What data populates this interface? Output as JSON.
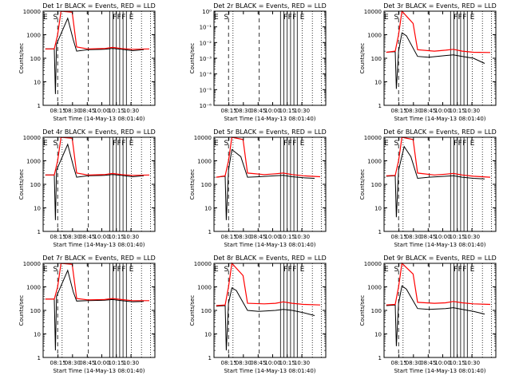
{
  "figure": {
    "xtick_labels": [
      "08:15",
      "08:30",
      "08:45",
      "10:00",
      "10:15",
      "10:30"
    ],
    "xlabel": "Start Time (14-May-13 08:01:40)",
    "ylabel": "Counts/sec",
    "colors": {
      "events": "#000000",
      "lld": "#ff0000",
      "axes": "#000000",
      "background": "#ffffff"
    }
  },
  "chart_data": [
    {
      "type": "line",
      "title": "Det 1r BLACK = Events, RED = LLD",
      "yscale": "log",
      "ylim": [
        1,
        10000
      ],
      "ytick_labels": [
        "1",
        "10",
        "100",
        "1000",
        "10000"
      ],
      "xticks": [
        "08:15",
        "08:30",
        "08:45",
        "10:00",
        "10:15",
        "10:30"
      ],
      "markers": [
        {
          "label": "E",
          "x": 0.02
        },
        {
          "label": "S",
          "x": 0.11
        },
        {
          "label": "F",
          "x": 0.64
        },
        {
          "label": "F",
          "x": 0.68
        },
        {
          "label": "F",
          "x": 0.72
        },
        {
          "label": "E",
          "x": 0.79
        }
      ],
      "events": [
        [
          0.02,
          250
        ],
        [
          0.1,
          250
        ],
        [
          0.11,
          3
        ],
        [
          0.12,
          400
        ],
        [
          0.22,
          5000
        ],
        [
          0.27,
          600
        ],
        [
          0.3,
          200
        ],
        [
          0.4,
          230
        ],
        [
          0.55,
          240
        ],
        [
          0.62,
          260
        ],
        [
          0.7,
          240
        ],
        [
          0.8,
          210
        ],
        [
          0.9,
          230
        ]
      ],
      "lld": [
        [
          0.02,
          250
        ],
        [
          0.1,
          250
        ],
        [
          0.13,
          1000
        ],
        [
          0.16,
          10000
        ],
        [
          0.26,
          9000
        ],
        [
          0.3,
          300
        ],
        [
          0.4,
          250
        ],
        [
          0.55,
          260
        ],
        [
          0.62,
          290
        ],
        [
          0.7,
          260
        ],
        [
          0.8,
          240
        ],
        [
          0.95,
          250
        ]
      ]
    },
    {
      "type": "line",
      "title": "Det 2r BLACK = Events, RED = LLD",
      "yscale": "log",
      "ylim": [
        1e-06,
        1
      ],
      "ytick_labels": [
        "10⁻⁶",
        "10⁻⁵",
        "10⁻⁴",
        "10⁻³",
        "10⁻²",
        "10⁻¹",
        "10⁰"
      ],
      "xticks": [
        "08:15",
        "08:30",
        "08:45",
        "10:00",
        "10:15",
        "10:30"
      ],
      "markers": [
        {
          "label": "E",
          "x": 0.02
        },
        {
          "label": "S",
          "x": 0.11
        },
        {
          "label": "F",
          "x": 0.64
        },
        {
          "label": "F",
          "x": 0.68
        },
        {
          "label": "F",
          "x": 0.72
        },
        {
          "label": "E",
          "x": 0.79
        }
      ],
      "events": [],
      "lld": []
    },
    {
      "type": "line",
      "title": "Det 3r BLACK = Events, RED = LLD",
      "yscale": "log",
      "ylim": [
        1,
        10000
      ],
      "ytick_labels": [
        "1",
        "10",
        "100",
        "1000",
        "10000"
      ],
      "xticks": [
        "08:15",
        "08:30",
        "08:45",
        "10:00",
        "10:15",
        "10:30"
      ],
      "markers": [
        {
          "label": "E",
          "x": 0.02
        },
        {
          "label": "S",
          "x": 0.11
        },
        {
          "label": "F",
          "x": 0.64
        },
        {
          "label": "F",
          "x": 0.68
        },
        {
          "label": "F",
          "x": 0.72
        },
        {
          "label": "E",
          "x": 0.79
        }
      ],
      "events": [
        [
          0.02,
          180
        ],
        [
          0.1,
          190
        ],
        [
          0.11,
          5
        ],
        [
          0.13,
          200
        ],
        [
          0.16,
          1200
        ],
        [
          0.2,
          900
        ],
        [
          0.3,
          120
        ],
        [
          0.4,
          110
        ],
        [
          0.55,
          130
        ],
        [
          0.62,
          140
        ],
        [
          0.7,
          120
        ],
        [
          0.8,
          100
        ],
        [
          0.9,
          60
        ]
      ],
      "lld": [
        [
          0.02,
          180
        ],
        [
          0.1,
          200
        ],
        [
          0.13,
          1000
        ],
        [
          0.16,
          10000
        ],
        [
          0.26,
          3000
        ],
        [
          0.3,
          230
        ],
        [
          0.45,
          200
        ],
        [
          0.55,
          220
        ],
        [
          0.62,
          240
        ],
        [
          0.7,
          200
        ],
        [
          0.8,
          180
        ],
        [
          0.95,
          175
        ]
      ]
    },
    {
      "type": "line",
      "title": "Det 4r BLACK = Events, RED = LLD",
      "yscale": "log",
      "ylim": [
        1,
        10000
      ],
      "ytick_labels": [
        "1",
        "10",
        "100",
        "1000",
        "10000"
      ],
      "xticks": [
        "08:15",
        "08:30",
        "08:45",
        "10:00",
        "10:15",
        "10:30"
      ],
      "markers": [
        {
          "label": "E",
          "x": 0.02
        },
        {
          "label": "S",
          "x": 0.11
        },
        {
          "label": "F",
          "x": 0.64
        },
        {
          "label": "F",
          "x": 0.68
        },
        {
          "label": "F",
          "x": 0.72
        },
        {
          "label": "E",
          "x": 0.79
        }
      ],
      "events": [
        [
          0.02,
          250
        ],
        [
          0.1,
          250
        ],
        [
          0.11,
          3
        ],
        [
          0.12,
          400
        ],
        [
          0.22,
          5000
        ],
        [
          0.27,
          600
        ],
        [
          0.3,
          200
        ],
        [
          0.4,
          230
        ],
        [
          0.55,
          240
        ],
        [
          0.62,
          260
        ],
        [
          0.7,
          240
        ],
        [
          0.8,
          210
        ],
        [
          0.9,
          230
        ]
      ],
      "lld": [
        [
          0.02,
          250
        ],
        [
          0.1,
          250
        ],
        [
          0.13,
          1000
        ],
        [
          0.16,
          10000
        ],
        [
          0.26,
          9000
        ],
        [
          0.3,
          300
        ],
        [
          0.4,
          250
        ],
        [
          0.55,
          260
        ],
        [
          0.62,
          290
        ],
        [
          0.7,
          260
        ],
        [
          0.8,
          240
        ],
        [
          0.95,
          250
        ]
      ]
    },
    {
      "type": "line",
      "title": "Det 5r BLACK = Events, RED = LLD",
      "yscale": "log",
      "ylim": [
        1,
        10000
      ],
      "ytick_labels": [
        "1",
        "10",
        "100",
        "1000",
        "10000"
      ],
      "xticks": [
        "08:15",
        "08:30",
        "08:45",
        "10:00",
        "10:15",
        "10:30"
      ],
      "markers": [
        {
          "label": "E",
          "x": 0.02
        },
        {
          "label": "S",
          "x": 0.11
        },
        {
          "label": "F",
          "x": 0.64
        },
        {
          "label": "F",
          "x": 0.68
        },
        {
          "label": "F",
          "x": 0.72
        },
        {
          "label": "E",
          "x": 0.79
        }
      ],
      "events": [
        [
          0.02,
          200
        ],
        [
          0.1,
          220
        ],
        [
          0.11,
          3
        ],
        [
          0.13,
          400
        ],
        [
          0.16,
          3000
        ],
        [
          0.24,
          1500
        ],
        [
          0.3,
          200
        ],
        [
          0.4,
          210
        ],
        [
          0.55,
          230
        ],
        [
          0.62,
          240
        ],
        [
          0.7,
          210
        ],
        [
          0.8,
          190
        ],
        [
          0.9,
          180
        ]
      ],
      "lld": [
        [
          0.02,
          200
        ],
        [
          0.1,
          230
        ],
        [
          0.13,
          1000
        ],
        [
          0.16,
          10000
        ],
        [
          0.26,
          8000
        ],
        [
          0.3,
          300
        ],
        [
          0.45,
          260
        ],
        [
          0.55,
          280
        ],
        [
          0.62,
          300
        ],
        [
          0.7,
          260
        ],
        [
          0.8,
          230
        ],
        [
          0.95,
          210
        ]
      ]
    },
    {
      "type": "line",
      "title": "Det 6r BLACK = Events, RED = LLD",
      "yscale": "log",
      "ylim": [
        1,
        10000
      ],
      "ytick_labels": [
        "1",
        "10",
        "100",
        "1000",
        "10000"
      ],
      "xticks": [
        "08:15",
        "08:30",
        "08:45",
        "10:00",
        "10:15",
        "10:30"
      ],
      "markers": [
        {
          "label": "E",
          "x": 0.02
        },
        {
          "label": "S",
          "x": 0.11
        },
        {
          "label": "F",
          "x": 0.64
        },
        {
          "label": "F",
          "x": 0.68
        },
        {
          "label": "F",
          "x": 0.72
        },
        {
          "label": "E",
          "x": 0.79
        }
      ],
      "events": [
        [
          0.02,
          220
        ],
        [
          0.1,
          230
        ],
        [
          0.11,
          4
        ],
        [
          0.13,
          400
        ],
        [
          0.18,
          4000
        ],
        [
          0.24,
          1500
        ],
        [
          0.3,
          180
        ],
        [
          0.4,
          200
        ],
        [
          0.55,
          220
        ],
        [
          0.62,
          230
        ],
        [
          0.7,
          200
        ],
        [
          0.8,
          180
        ],
        [
          0.9,
          170
        ]
      ],
      "lld": [
        [
          0.02,
          230
        ],
        [
          0.1,
          240
        ],
        [
          0.13,
          1000
        ],
        [
          0.16,
          10000
        ],
        [
          0.26,
          8000
        ],
        [
          0.3,
          300
        ],
        [
          0.45,
          250
        ],
        [
          0.55,
          270
        ],
        [
          0.62,
          290
        ],
        [
          0.7,
          250
        ],
        [
          0.8,
          220
        ],
        [
          0.95,
          200
        ]
      ]
    },
    {
      "type": "line",
      "title": "Det 7r BLACK = Events, RED = LLD",
      "yscale": "log",
      "ylim": [
        1,
        10000
      ],
      "ytick_labels": [
        "1",
        "10",
        "100",
        "1000",
        "10000"
      ],
      "xticks": [
        "08:15",
        "08:30",
        "08:45",
        "10:00",
        "10:15",
        "10:30"
      ],
      "markers": [
        {
          "label": "E",
          "x": 0.02
        },
        {
          "label": "S",
          "x": 0.11
        },
        {
          "label": "F",
          "x": 0.64
        },
        {
          "label": "F",
          "x": 0.68
        },
        {
          "label": "F",
          "x": 0.72
        },
        {
          "label": "E",
          "x": 0.79
        }
      ],
      "events": [
        [
          0.02,
          300
        ],
        [
          0.1,
          300
        ],
        [
          0.11,
          2
        ],
        [
          0.12,
          400
        ],
        [
          0.22,
          5000
        ],
        [
          0.27,
          600
        ],
        [
          0.3,
          250
        ],
        [
          0.4,
          260
        ],
        [
          0.55,
          270
        ],
        [
          0.62,
          290
        ],
        [
          0.7,
          260
        ],
        [
          0.8,
          230
        ],
        [
          0.9,
          240
        ]
      ],
      "lld": [
        [
          0.02,
          300
        ],
        [
          0.1,
          300
        ],
        [
          0.13,
          1000
        ],
        [
          0.16,
          10000
        ],
        [
          0.26,
          9000
        ],
        [
          0.3,
          320
        ],
        [
          0.4,
          280
        ],
        [
          0.55,
          290
        ],
        [
          0.62,
          320
        ],
        [
          0.7,
          290
        ],
        [
          0.8,
          260
        ],
        [
          0.95,
          260
        ]
      ]
    },
    {
      "type": "line",
      "title": "Det 8r BLACK = Events, RED = LLD",
      "yscale": "log",
      "ylim": [
        1,
        10000
      ],
      "ytick_labels": [
        "1",
        "10",
        "100",
        "1000",
        "10000"
      ],
      "xticks": [
        "08:15",
        "08:30",
        "08:45",
        "10:00",
        "10:15",
        "10:30"
      ],
      "markers": [
        {
          "label": "E",
          "x": 0.02
        },
        {
          "label": "S",
          "x": 0.11
        },
        {
          "label": "F",
          "x": 0.64
        },
        {
          "label": "F",
          "x": 0.68
        },
        {
          "label": "F",
          "x": 0.72
        },
        {
          "label": "E",
          "x": 0.79
        }
      ],
      "events": [
        [
          0.02,
          150
        ],
        [
          0.1,
          160
        ],
        [
          0.11,
          2
        ],
        [
          0.13,
          200
        ],
        [
          0.16,
          900
        ],
        [
          0.2,
          700
        ],
        [
          0.3,
          100
        ],
        [
          0.4,
          90
        ],
        [
          0.55,
          100
        ],
        [
          0.62,
          110
        ],
        [
          0.7,
          100
        ],
        [
          0.8,
          80
        ],
        [
          0.9,
          60
        ]
      ],
      "lld": [
        [
          0.02,
          160
        ],
        [
          0.1,
          170
        ],
        [
          0.13,
          1000
        ],
        [
          0.16,
          10000
        ],
        [
          0.26,
          3000
        ],
        [
          0.3,
          200
        ],
        [
          0.45,
          190
        ],
        [
          0.55,
          200
        ],
        [
          0.62,
          230
        ],
        [
          0.7,
          200
        ],
        [
          0.8,
          180
        ],
        [
          0.95,
          170
        ]
      ]
    },
    {
      "type": "line",
      "title": "Det 9r BLACK = Events, RED = LLD",
      "yscale": "log",
      "ylim": [
        1,
        10000
      ],
      "ytick_labels": [
        "1",
        "10",
        "100",
        "1000",
        "10000"
      ],
      "xticks": [
        "08:15",
        "08:30",
        "08:45",
        "10:00",
        "10:15",
        "10:30"
      ],
      "markers": [
        {
          "label": "E",
          "x": 0.02
        },
        {
          "label": "S",
          "x": 0.11
        },
        {
          "label": "F",
          "x": 0.64
        },
        {
          "label": "F",
          "x": 0.68
        },
        {
          "label": "F",
          "x": 0.72
        },
        {
          "label": "E",
          "x": 0.79
        }
      ],
      "events": [
        [
          0.02,
          160
        ],
        [
          0.1,
          170
        ],
        [
          0.11,
          3
        ],
        [
          0.13,
          200
        ],
        [
          0.16,
          1100
        ],
        [
          0.2,
          800
        ],
        [
          0.3,
          120
        ],
        [
          0.4,
          110
        ],
        [
          0.55,
          120
        ],
        [
          0.62,
          130
        ],
        [
          0.7,
          110
        ],
        [
          0.8,
          90
        ],
        [
          0.9,
          70
        ]
      ],
      "lld": [
        [
          0.02,
          170
        ],
        [
          0.1,
          180
        ],
        [
          0.13,
          1000
        ],
        [
          0.16,
          10000
        ],
        [
          0.26,
          3500
        ],
        [
          0.3,
          220
        ],
        [
          0.45,
          200
        ],
        [
          0.55,
          210
        ],
        [
          0.62,
          240
        ],
        [
          0.7,
          210
        ],
        [
          0.8,
          190
        ],
        [
          0.95,
          180
        ]
      ]
    }
  ]
}
